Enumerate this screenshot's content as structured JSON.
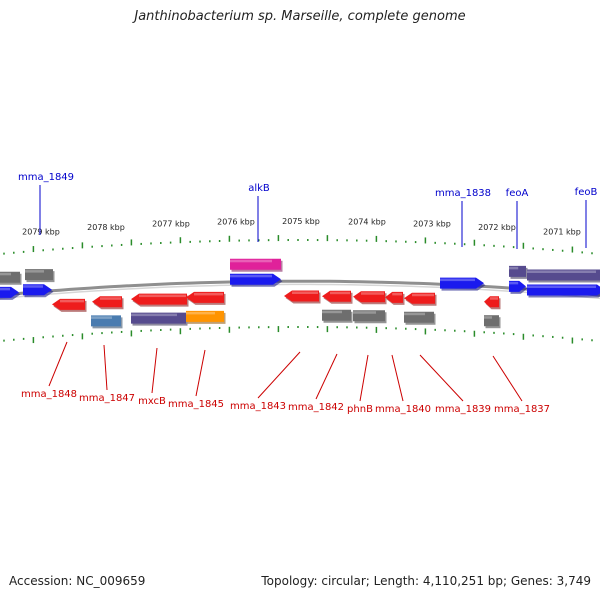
{
  "title": "Janthinobacterium sp. Marseille, complete genome",
  "footer": {
    "accession": "Accession: NC_009659",
    "topology": "Topology: circular; Length: 4,110,251 bp; Genes: 3,749"
  },
  "colors": {
    "backbone": "#8f8f8f",
    "tick": "#2a8c2a",
    "forward_gene": "#1a1aee",
    "reverse_gene": "#ee1c1c",
    "grey_feature": "#6e6e6e",
    "purple_feature": "#564b8e",
    "magenta_feature": "#e0219a",
    "orange_feature": "#ff9400",
    "steelblue_feature": "#4a7cb0",
    "forward_label": "#0000cc",
    "reverse_label": "#cc0000"
  },
  "scale_labels": [
    "2079 kbp",
    "2078 kbp",
    "2077 kbp",
    "2076 kbp",
    "2075 kbp",
    "2074 kbp",
    "2073 kbp",
    "2072 kbp",
    "2071 kbp"
  ],
  "forward_labels": [
    "mma_1849",
    "alkB",
    "mma_1838",
    "feoA",
    "feoB"
  ],
  "reverse_labels": [
    "mma_1848",
    "mma_1847",
    "mxcB",
    "mma_1845",
    "mma_1843",
    "mma_1842",
    "phnB",
    "mma_1840",
    "mma_1839",
    "mma_1837"
  ]
}
